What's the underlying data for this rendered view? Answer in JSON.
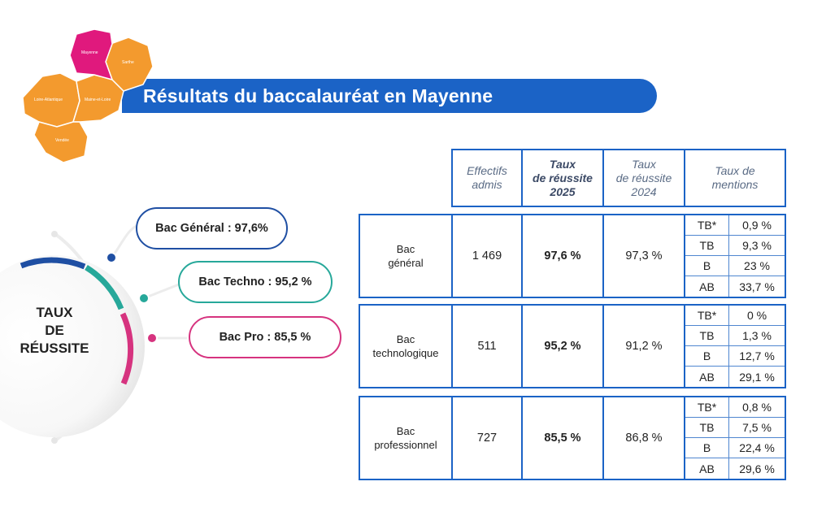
{
  "header": {
    "title": "Résultats du baccalauréat en Mayenne",
    "map_regions": [
      "Mayenne",
      "Sarthe",
      "Loire-Atlantique",
      "Maine-et-Loire",
      "Vendée"
    ]
  },
  "gauge": {
    "label_line1": "TAUX",
    "label_line2": "DE",
    "label_line3": "RÉUSSITE",
    "items": [
      {
        "label": "Bac Général : 97,6%",
        "color": "#1f4fa3"
      },
      {
        "label": "Bac Techno : 95,2 %",
        "color": "#27a89a"
      },
      {
        "label": "Bac Pro : 85,5 %",
        "color": "#d6337f"
      }
    ]
  },
  "table": {
    "headers": {
      "effectifs_l1": "Effectifs",
      "effectifs_l2": "admis",
      "taux2025_l1": "Taux",
      "taux2025_l2": "de réussite",
      "taux2025_l3": "2025",
      "taux2024_l1": "Taux",
      "taux2024_l2": "de réussite",
      "taux2024_l3": "2024",
      "mentions_l1": "Taux de",
      "mentions_l2": "mentions"
    },
    "rows": [
      {
        "label_l1": "Bac",
        "label_l2": "général",
        "effectifs": "1 469",
        "taux2025": "97,6 %",
        "taux2024": "97,3 %",
        "mentions": [
          {
            "label": "TB*",
            "value": "0,9 %"
          },
          {
            "label": "TB",
            "value": "9,3 %"
          },
          {
            "label": "B",
            "value": "23 %"
          },
          {
            "label": "AB",
            "value": "33,7 %"
          }
        ]
      },
      {
        "label_l1": "Bac",
        "label_l2": "technologique",
        "effectifs": "511",
        "taux2025": "95,2 %",
        "taux2024": "91,2 %",
        "mentions": [
          {
            "label": "TB*",
            "value": "0 %"
          },
          {
            "label": "TB",
            "value": "1,3 %"
          },
          {
            "label": "B",
            "value": "12,7 %"
          },
          {
            "label": "AB",
            "value": "29,1 %"
          }
        ]
      },
      {
        "label_l1": "Bac",
        "label_l2": "professionnel",
        "effectifs": "727",
        "taux2025": "85,5 %",
        "taux2024": "86,8 %",
        "mentions": [
          {
            "label": "TB*",
            "value": "0,8 %"
          },
          {
            "label": "TB",
            "value": "7,5 %"
          },
          {
            "label": "B",
            "value": "22,4 %"
          },
          {
            "label": "AB",
            "value": "29,6 %"
          }
        ]
      }
    ]
  }
}
